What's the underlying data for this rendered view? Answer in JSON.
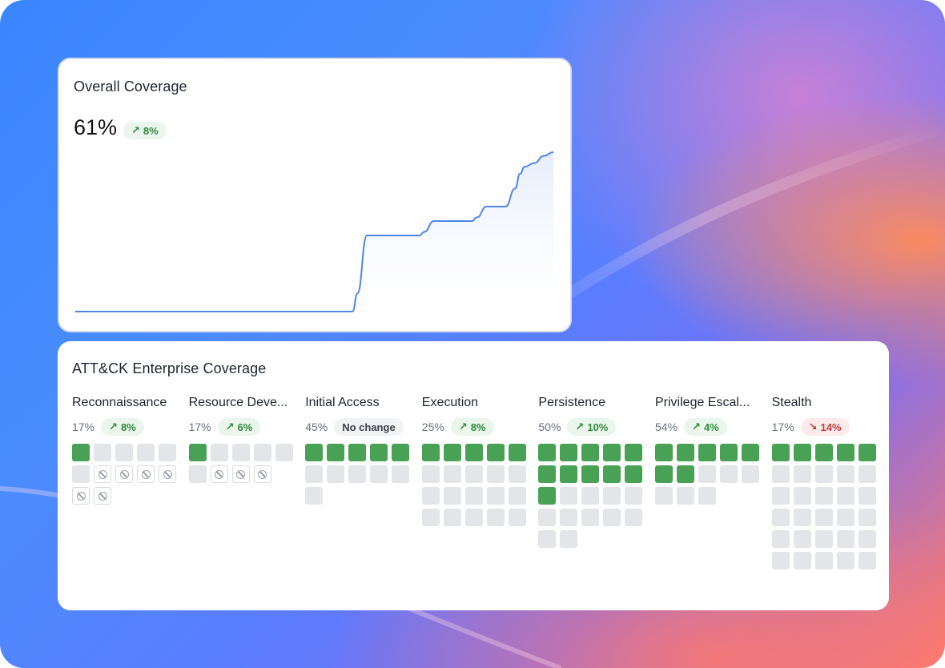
{
  "overall": {
    "title": "Overall Coverage",
    "value": "61%",
    "change": {
      "direction": "up",
      "label": "8%"
    }
  },
  "chart_data": {
    "type": "area",
    "title": "",
    "xlabel": "",
    "ylabel": "",
    "x": [
      0,
      58,
      59,
      61,
      72,
      73,
      75,
      83,
      84,
      86,
      90,
      92,
      93,
      94,
      96,
      98,
      100
    ],
    "y": [
      17,
      17,
      22,
      38,
      38,
      39,
      42,
      42,
      43,
      46,
      46,
      51,
      55,
      57,
      58,
      60,
      61
    ],
    "xlim": [
      0,
      100
    ],
    "ylim": [
      15,
      63
    ],
    "grid": false,
    "line_color": "#4f86e8",
    "fill_color": "#e6ecfb"
  },
  "attack": {
    "title": "ATT&CK Enterprise Coverage",
    "tactics": [
      {
        "name": "Reconnaissance",
        "pct": "17%",
        "change_dir": "up",
        "change": "8%",
        "cells": "YNNNNNXXXXXX"
      },
      {
        "name": "Resource Deve...",
        "pct": "17%",
        "change_dir": "up",
        "change": "6%",
        "cells": "YNNNNNXXX"
      },
      {
        "name": "Initial Access",
        "pct": "45%",
        "change_dir": "flat",
        "change": "No change",
        "cells": "YYYYYNNNNNN"
      },
      {
        "name": "Execution",
        "pct": "25%",
        "change_dir": "up",
        "change": "8%",
        "cells": "YYYYYNNNNNNNNNNNNNNN"
      },
      {
        "name": "Persistence",
        "pct": "50%",
        "change_dir": "up",
        "change": "10%",
        "cells": "YYYYYYYYYYYNNNNNNNNNNN"
      },
      {
        "name": "Privilege Escal...",
        "pct": "54%",
        "change_dir": "up",
        "change": "4%",
        "cells": "YYYYYYYNNNNNN"
      },
      {
        "name": "Stealth",
        "pct": "17%",
        "change_dir": "down",
        "change": "14%",
        "cells": "YYYYYNNNNNNNNNNNNNNNNNNNNNNNNN"
      }
    ]
  },
  "icons": {
    "up": "arrow-up-right-icon",
    "down": "arrow-down-right-icon",
    "na": "not-applicable-icon"
  },
  "colors": {
    "covered": "#48a154",
    "uncovered": "#e4e5e9",
    "up": "#2e8b3a",
    "down": "#c43b3b"
  }
}
